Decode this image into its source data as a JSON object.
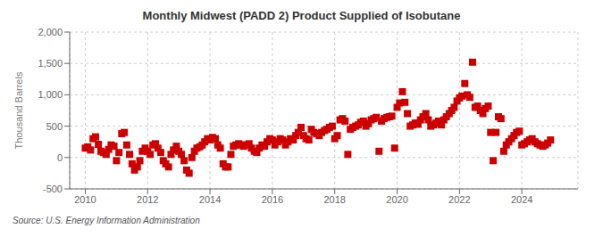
{
  "chart_data": {
    "type": "scatter",
    "title": "Monthly Midwest (PADD 2) Product Supplied of Isobutane",
    "y_label": "Thousand Barrels",
    "annotations": [
      "Source: U.S. Energy Information Administration"
    ],
    "color": "#cc0000",
    "marker": "square",
    "grid": true,
    "xlim": [
      2009.5,
      2025.8
    ],
    "xticks": [
      2010,
      2012,
      2014,
      2016,
      2018,
      2020,
      2022,
      2024
    ],
    "ylim": [
      -500,
      2000
    ],
    "yticks": [
      -500,
      0,
      500,
      {
        "value": 1000,
        "label": "1,000"
      },
      {
        "value": 1500,
        "label": "1,500"
      },
      {
        "value": 2000,
        "label": "2,000"
      }
    ],
    "x": [
      2010.0,
      2010.08,
      2010.17,
      2010.25,
      2010.33,
      2010.42,
      2010.5,
      2010.58,
      2010.67,
      2010.75,
      2010.83,
      2010.92,
      2011.0,
      2011.08,
      2011.17,
      2011.25,
      2011.33,
      2011.42,
      2011.5,
      2011.58,
      2011.67,
      2011.75,
      2011.83,
      2011.92,
      2012.0,
      2012.08,
      2012.17,
      2012.25,
      2012.33,
      2012.42,
      2012.5,
      2012.58,
      2012.67,
      2012.75,
      2012.83,
      2012.92,
      2013.0,
      2013.08,
      2013.17,
      2013.25,
      2013.33,
      2013.42,
      2013.5,
      2013.58,
      2013.67,
      2013.75,
      2013.83,
      2013.92,
      2014.0,
      2014.08,
      2014.17,
      2014.25,
      2014.33,
      2014.42,
      2014.5,
      2014.58,
      2014.67,
      2014.75,
      2014.83,
      2014.92,
      2015.0,
      2015.08,
      2015.17,
      2015.25,
      2015.33,
      2015.42,
      2015.5,
      2015.58,
      2015.67,
      2015.75,
      2015.83,
      2015.92,
      2016.0,
      2016.08,
      2016.17,
      2016.25,
      2016.33,
      2016.42,
      2016.5,
      2016.58,
      2016.67,
      2016.75,
      2016.83,
      2016.92,
      2017.0,
      2017.08,
      2017.17,
      2017.25,
      2017.33,
      2017.42,
      2017.5,
      2017.58,
      2017.67,
      2017.75,
      2017.83,
      2017.92,
      2018.0,
      2018.08,
      2018.17,
      2018.25,
      2018.33,
      2018.42,
      2018.5,
      2018.58,
      2018.67,
      2018.75,
      2018.83,
      2018.92,
      2019.0,
      2019.08,
      2019.17,
      2019.25,
      2019.33,
      2019.42,
      2019.5,
      2019.58,
      2019.67,
      2019.75,
      2019.83,
      2019.92,
      2020.0,
      2020.08,
      2020.17,
      2020.25,
      2020.33,
      2020.42,
      2020.5,
      2020.58,
      2020.67,
      2020.75,
      2020.83,
      2020.92,
      2021.0,
      2021.08,
      2021.17,
      2021.25,
      2021.33,
      2021.42,
      2021.5,
      2021.58,
      2021.67,
      2021.75,
      2021.83,
      2021.92,
      2022.0,
      2022.08,
      2022.17,
      2022.25,
      2022.33,
      2022.42,
      2022.5,
      2022.58,
      2022.67,
      2022.75,
      2022.83,
      2022.92,
      2023.0,
      2023.08,
      2023.17,
      2023.25,
      2023.33,
      2023.42,
      2023.5,
      2023.58,
      2023.67,
      2023.75,
      2023.83,
      2023.92,
      2024.0,
      2024.08,
      2024.17,
      2024.25,
      2024.33,
      2024.42,
      2024.5,
      2024.58,
      2024.67,
      2024.75,
      2024.83,
      2024.92
    ],
    "values": [
      150,
      170,
      120,
      300,
      330,
      210,
      100,
      80,
      50,
      130,
      200,
      180,
      -50,
      80,
      380,
      400,
      200,
      50,
      -100,
      -200,
      -150,
      -50,
      100,
      150,
      100,
      50,
      200,
      220,
      150,
      80,
      -50,
      -100,
      -150,
      50,
      120,
      180,
      100,
      50,
      -50,
      -200,
      -250,
      0,
      100,
      150,
      170,
      200,
      250,
      300,
      280,
      320,
      300,
      200,
      150,
      -100,
      -150,
      -150,
      50,
      180,
      200,
      220,
      200,
      180,
      200,
      220,
      150,
      100,
      80,
      150,
      200,
      180,
      250,
      300,
      280,
      200,
      250,
      300,
      280,
      200,
      250,
      300,
      280,
      350,
      400,
      480,
      350,
      300,
      280,
      450,
      400,
      380,
      350,
      400,
      430,
      450,
      480,
      500,
      300,
      350,
      600,
      620,
      580,
      50,
      450,
      480,
      500,
      520,
      560,
      580,
      500,
      540,
      600,
      620,
      640,
      100,
      580,
      620,
      640,
      650,
      660,
      150,
      800,
      870,
      1050,
      880,
      700,
      500,
      520,
      550,
      530,
      600,
      650,
      700,
      600,
      500,
      520,
      550,
      580,
      520,
      600,
      650,
      700,
      750,
      800,
      900,
      950,
      980,
      1180,
      1000,
      960,
      1520,
      800,
      820,
      750,
      700,
      780,
      820,
      400,
      -50,
      400,
      650,
      620,
      100,
      200,
      250,
      300,
      350,
      400,
      420,
      200,
      220,
      250,
      280,
      300,
      250,
      220,
      200,
      180,
      200,
      230,
      280
    ]
  }
}
